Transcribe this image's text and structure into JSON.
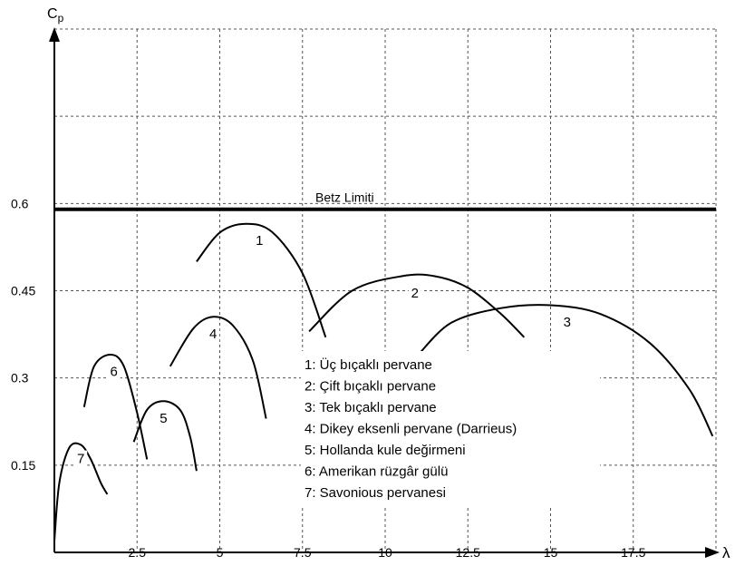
{
  "chart_data": {
    "type": "line",
    "title": "",
    "xlabel": "λ",
    "ylabel_main": "C",
    "ylabel_sub": "p",
    "xlim": [
      0,
      20
    ],
    "ylim": [
      0,
      0.9
    ],
    "grid": true,
    "x_ticks": [
      "2.5",
      "5",
      "7.5",
      "10",
      "12.5",
      "15",
      "17.5"
    ],
    "y_ticks": [
      "0.15",
      "0.3",
      "0.45",
      "0.6"
    ],
    "betz": {
      "label": "Betz Limiti",
      "value": 0.59
    },
    "legend": {
      "placement": "bottom-center",
      "items": [
        "1: Üç bıçaklı pervane",
        "2: Çift bıçaklı pervane",
        "3: Tek bıçaklı pervane",
        "4: Dikey eksenli pervane (Darrieus)",
        "5: Hollanda kule değirmeni",
        "6: Amerikan rüzgâr gülü",
        "7: Savonious pervanesi"
      ]
    },
    "series": [
      {
        "name": "1",
        "label_at": [
          6.2,
          0.53
        ],
        "points": [
          [
            4.3,
            0.5
          ],
          [
            5.0,
            0.55
          ],
          [
            5.8,
            0.565
          ],
          [
            6.6,
            0.55
          ],
          [
            7.5,
            0.48
          ],
          [
            8.2,
            0.37
          ]
        ]
      },
      {
        "name": "2",
        "label_at": [
          10.9,
          0.44
        ],
        "points": [
          [
            7.7,
            0.38
          ],
          [
            9.0,
            0.45
          ],
          [
            10.5,
            0.475
          ],
          [
            11.5,
            0.475
          ],
          [
            12.5,
            0.455
          ],
          [
            13.5,
            0.41
          ],
          [
            14.2,
            0.37
          ]
        ]
      },
      {
        "name": "3",
        "label_at": [
          15.5,
          0.39
        ],
        "points": [
          [
            11.0,
            0.34
          ],
          [
            12.0,
            0.395
          ],
          [
            13.5,
            0.42
          ],
          [
            15.0,
            0.425
          ],
          [
            16.5,
            0.41
          ],
          [
            18.0,
            0.36
          ],
          [
            19.2,
            0.28
          ],
          [
            19.9,
            0.2
          ]
        ]
      },
      {
        "name": "4",
        "label_at": [
          4.8,
          0.37
        ],
        "points": [
          [
            3.5,
            0.32
          ],
          [
            4.2,
            0.385
          ],
          [
            4.8,
            0.405
          ],
          [
            5.4,
            0.39
          ],
          [
            6.0,
            0.33
          ],
          [
            6.4,
            0.23
          ]
        ]
      },
      {
        "name": "5",
        "label_at": [
          3.3,
          0.225
        ],
        "points": [
          [
            2.4,
            0.19
          ],
          [
            2.8,
            0.245
          ],
          [
            3.3,
            0.26
          ],
          [
            3.8,
            0.245
          ],
          [
            4.1,
            0.2
          ],
          [
            4.3,
            0.14
          ]
        ]
      },
      {
        "name": "6",
        "label_at": [
          1.8,
          0.305
        ],
        "points": [
          [
            0.9,
            0.25
          ],
          [
            1.2,
            0.32
          ],
          [
            1.7,
            0.34
          ],
          [
            2.1,
            0.32
          ],
          [
            2.5,
            0.24
          ],
          [
            2.8,
            0.16
          ]
        ]
      },
      {
        "name": "7",
        "label_at": [
          0.8,
          0.155
        ],
        "points": [
          [
            0.0,
            0.02
          ],
          [
            0.15,
            0.12
          ],
          [
            0.45,
            0.18
          ],
          [
            0.8,
            0.185
          ],
          [
            1.1,
            0.16
          ],
          [
            1.4,
            0.12
          ],
          [
            1.6,
            0.1
          ]
        ]
      }
    ]
  }
}
